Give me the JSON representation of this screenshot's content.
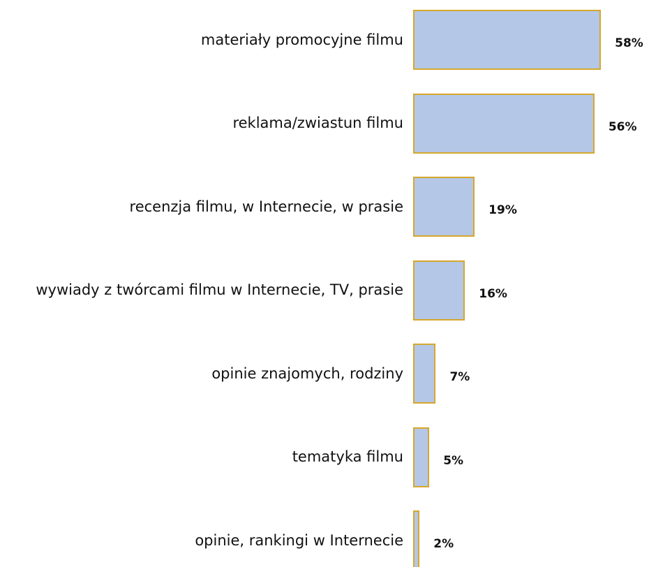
{
  "chart_data": {
    "type": "bar",
    "orientation": "horizontal",
    "categories": [
      "materiały promocyjne filmu",
      "reklama/zwiastun filmu",
      "recenzja filmu, w Internecie, w prasie",
      "wywiady z twórcami filmu w Internecie, TV, prasie",
      "opinie znajomych, rodziny",
      "tematyka filmu",
      "opinie, rankingi w Internecie"
    ],
    "values": [
      58,
      56,
      19,
      16,
      7,
      5,
      2
    ],
    "value_labels": [
      "58%",
      "56%",
      "19%",
      "16%",
      "7%",
      "5%",
      "2%"
    ],
    "color": "#b4c7e7",
    "edge_color": "#d6a72b"
  }
}
